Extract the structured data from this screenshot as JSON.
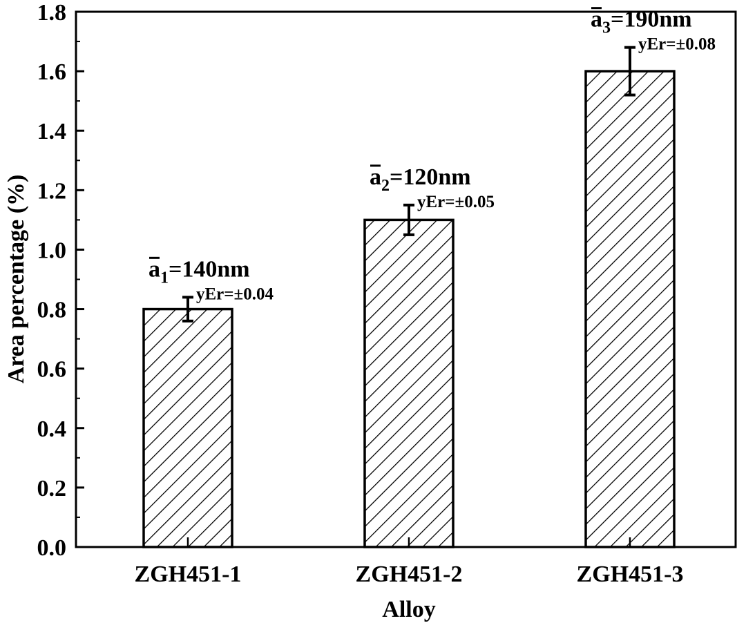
{
  "chart_data": {
    "type": "bar",
    "categories": [
      "ZGH451-1",
      "ZGH451-2",
      "ZGH451-3"
    ],
    "values": [
      0.8,
      1.1,
      1.6
    ],
    "errors": [
      0.04,
      0.05,
      0.08
    ],
    "error_labels": [
      "yEr=±0.04",
      "yEr=±0.05",
      "yEr=±0.08"
    ],
    "size_labels": [
      {
        "symbol": "a",
        "sub": "1",
        "text": "=140nm"
      },
      {
        "symbol": "a",
        "sub": "2",
        "text": "=120nm"
      },
      {
        "symbol": "a",
        "sub": "3",
        "text": "=190nm"
      }
    ],
    "xlabel": "Alloy",
    "ylabel": "Area percentage (%)",
    "ylim": [
      0.0,
      1.8
    ],
    "yticks": [
      0.0,
      0.2,
      0.4,
      0.6,
      0.8,
      1.0,
      1.2,
      1.4,
      1.6,
      1.8
    ],
    "ytick_labels": [
      "0.0",
      "0.2",
      "0.4",
      "0.6",
      "0.8",
      "1.0",
      "1.2",
      "1.4",
      "1.6",
      "1.8"
    ],
    "bar_fill": "hatched",
    "grid": false,
    "colors": {
      "bar_stroke": "#000000",
      "hatch": "#000000",
      "background": "#ffffff"
    }
  }
}
